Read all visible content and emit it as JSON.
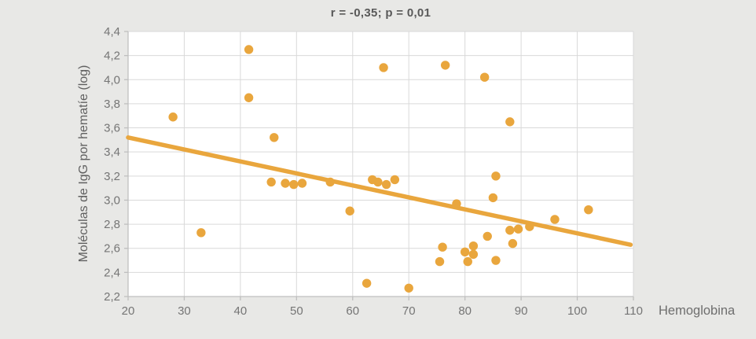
{
  "chart_data": {
    "type": "scatter",
    "title": "r = -0,35; p = 0,01",
    "xlabel": "Hemoglobina",
    "ylabel": "Moléculas de IgG por hematíe (log)",
    "xlim": [
      20,
      110
    ],
    "ylim": [
      2.2,
      4.4
    ],
    "grid": true,
    "x_ticks": [
      {
        "v": 20,
        "label": "20"
      },
      {
        "v": 30,
        "label": "30"
      },
      {
        "v": 40,
        "label": "40"
      },
      {
        "v": 50,
        "label": "50"
      },
      {
        "v": 60,
        "label": "60"
      },
      {
        "v": 70,
        "label": "70"
      },
      {
        "v": 80,
        "label": "80"
      },
      {
        "v": 90,
        "label": "90"
      },
      {
        "v": 100,
        "label": "100"
      },
      {
        "v": 110,
        "label": "110"
      }
    ],
    "y_ticks": [
      {
        "v": 4.4,
        "label": "4,4"
      },
      {
        "v": 4.2,
        "label": "4,2"
      },
      {
        "v": 4.0,
        "label": "4,0"
      },
      {
        "v": 3.8,
        "label": "3,8"
      },
      {
        "v": 3.6,
        "label": "3,6"
      },
      {
        "v": 3.4,
        "label": "3,4"
      },
      {
        "v": 3.2,
        "label": "3,2"
      },
      {
        "v": 3.0,
        "label": "3,0"
      },
      {
        "v": 2.8,
        "label": "2,8"
      },
      {
        "v": 2.6,
        "label": "2,6"
      },
      {
        "v": 2.4,
        "label": "2,4"
      },
      {
        "v": 2.2,
        "label": "2,2"
      }
    ],
    "points": [
      [
        28,
        3.69
      ],
      [
        33,
        2.73
      ],
      [
        41.5,
        4.25
      ],
      [
        41.5,
        3.85
      ],
      [
        45.5,
        3.15
      ],
      [
        46,
        3.52
      ],
      [
        48,
        3.14
      ],
      [
        49.5,
        3.13
      ],
      [
        51,
        3.14
      ],
      [
        56,
        3.15
      ],
      [
        59.5,
        2.91
      ],
      [
        62.5,
        2.31
      ],
      [
        63.5,
        3.17
      ],
      [
        64.5,
        3.15
      ],
      [
        65.5,
        4.1
      ],
      [
        66,
        3.13
      ],
      [
        67.5,
        3.17
      ],
      [
        70,
        2.27
      ],
      [
        75.5,
        2.49
      ],
      [
        76,
        2.61
      ],
      [
        76.5,
        4.12
      ],
      [
        78.5,
        2.97
      ],
      [
        80,
        2.57
      ],
      [
        80.5,
        2.49
      ],
      [
        81.5,
        2.62
      ],
      [
        81.5,
        2.55
      ],
      [
        83.5,
        4.02
      ],
      [
        84,
        2.7
      ],
      [
        85,
        3.02
      ],
      [
        85.5,
        3.2
      ],
      [
        85.5,
        2.5
      ],
      [
        88,
        3.65
      ],
      [
        88,
        2.75
      ],
      [
        88.5,
        2.64
      ],
      [
        89.5,
        2.76
      ],
      [
        91.5,
        2.78
      ],
      [
        96,
        2.84
      ],
      [
        102,
        2.92
      ]
    ],
    "trendline": {
      "x1": 20,
      "y1": 3.52,
      "x2": 109.5,
      "y2": 2.63
    }
  },
  "colors": {
    "accent": "#E9A63D",
    "page_bg": "#E8E8E6",
    "plot_bg": "#FFFFFF",
    "gridline": "#D9D9D9",
    "axis_line": "#BFBFBF",
    "tick_text": "#757575",
    "title_text": "#595959"
  }
}
